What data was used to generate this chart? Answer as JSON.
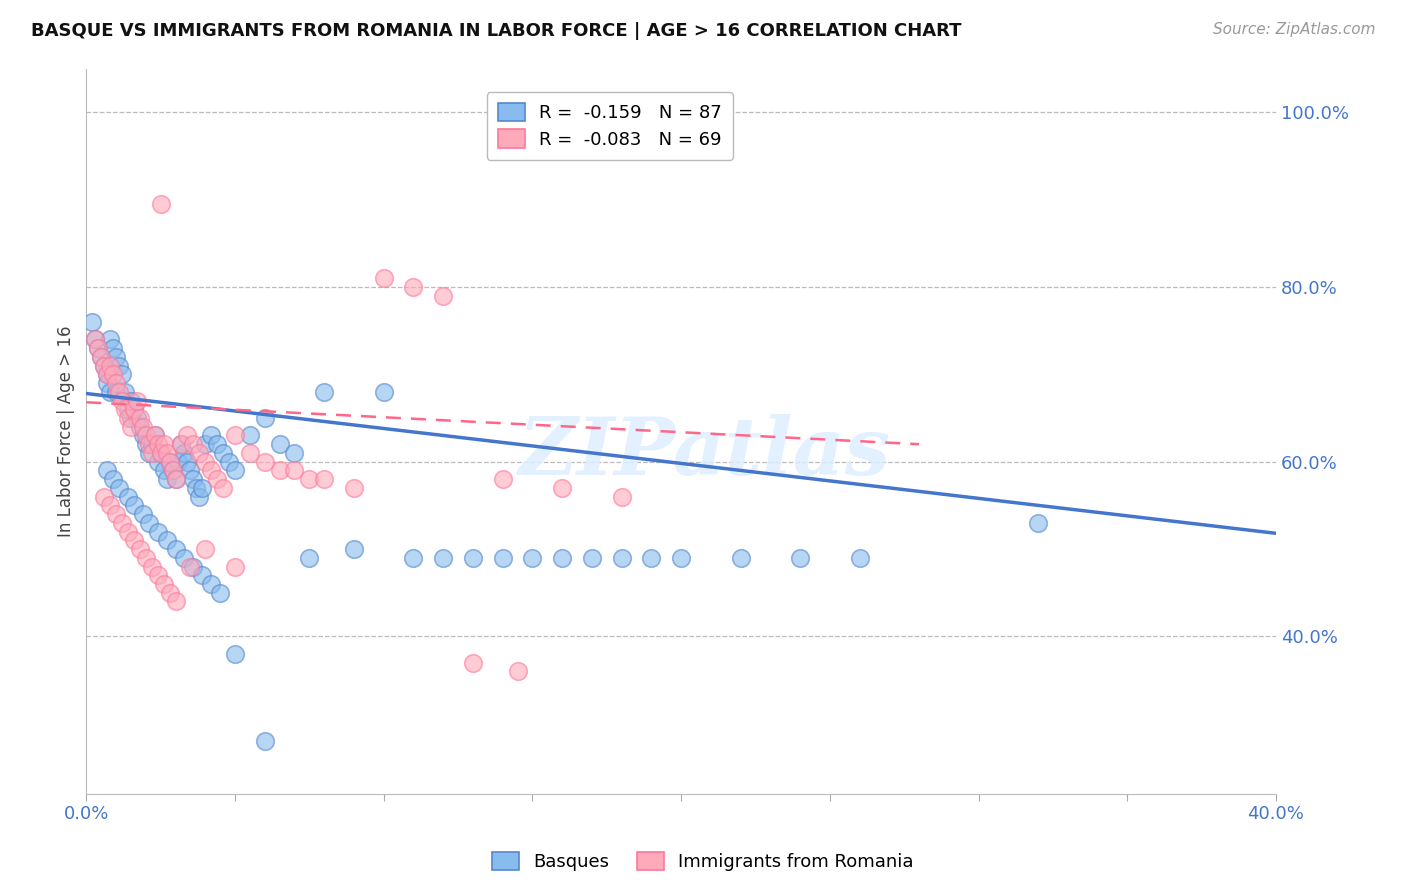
{
  "title": "BASQUE VS IMMIGRANTS FROM ROMANIA IN LABOR FORCE | AGE > 16 CORRELATION CHART",
  "source": "Source: ZipAtlas.com",
  "ylabel": "In Labor Force | Age > 16",
  "xlim": [
    0.0,
    0.4
  ],
  "ylim": [
    0.22,
    1.05
  ],
  "yticks_right": [
    0.4,
    0.6,
    0.8,
    1.0
  ],
  "ytick_labels_right": [
    "40.0%",
    "60.0%",
    "80.0%",
    "100.0%"
  ],
  "xtick_positions": [
    0.0,
    0.05,
    0.1,
    0.15,
    0.2,
    0.25,
    0.3,
    0.35,
    0.4
  ],
  "xtick_labels": [
    "0.0%",
    "",
    "",
    "",
    "",
    "",
    "",
    "",
    "40.0%"
  ],
  "legend_blue_r": "R =  -0.159",
  "legend_blue_n": "N = 87",
  "legend_pink_r": "R =  -0.083",
  "legend_pink_n": "N = 69",
  "blue_color": "#88BBEE",
  "pink_color": "#FFAABB",
  "blue_edge_color": "#5588CC",
  "pink_edge_color": "#FF7799",
  "blue_line_color": "#4477CC",
  "pink_line_color": "#FF6688",
  "watermark": "ZIPatlas",
  "watermark_color": "#DDEEFF",
  "background_color": "#FFFFFF",
  "grid_color": "#BBBBBB",
  "axis_color": "#4477CC",
  "title_color": "#111111",
  "source_color": "#999999",
  "ylabel_color": "#444444",
  "blue_line_x": [
    0.0,
    0.4
  ],
  "blue_line_y": [
    0.678,
    0.518
  ],
  "pink_line_x": [
    0.0,
    0.28
  ],
  "pink_line_y": [
    0.668,
    0.62
  ],
  "blue_scatter_x": [
    0.002,
    0.003,
    0.004,
    0.005,
    0.006,
    0.007,
    0.007,
    0.008,
    0.008,
    0.009,
    0.01,
    0.01,
    0.011,
    0.012,
    0.013,
    0.014,
    0.015,
    0.015,
    0.016,
    0.017,
    0.018,
    0.019,
    0.02,
    0.021,
    0.022,
    0.023,
    0.024,
    0.025,
    0.026,
    0.027,
    0.028,
    0.029,
    0.03,
    0.031,
    0.032,
    0.033,
    0.034,
    0.035,
    0.036,
    0.037,
    0.038,
    0.039,
    0.04,
    0.042,
    0.044,
    0.046,
    0.048,
    0.05,
    0.055,
    0.06,
    0.065,
    0.07,
    0.075,
    0.08,
    0.09,
    0.1,
    0.11,
    0.12,
    0.13,
    0.14,
    0.15,
    0.16,
    0.17,
    0.18,
    0.19,
    0.2,
    0.22,
    0.24,
    0.26,
    0.007,
    0.009,
    0.011,
    0.014,
    0.016,
    0.019,
    0.021,
    0.024,
    0.027,
    0.03,
    0.033,
    0.036,
    0.039,
    0.042,
    0.045,
    0.05,
    0.06,
    0.32
  ],
  "blue_scatter_y": [
    0.76,
    0.74,
    0.73,
    0.72,
    0.71,
    0.7,
    0.69,
    0.68,
    0.74,
    0.73,
    0.68,
    0.72,
    0.71,
    0.7,
    0.68,
    0.66,
    0.67,
    0.65,
    0.66,
    0.65,
    0.64,
    0.63,
    0.62,
    0.61,
    0.62,
    0.63,
    0.6,
    0.61,
    0.59,
    0.58,
    0.6,
    0.59,
    0.58,
    0.6,
    0.62,
    0.61,
    0.6,
    0.59,
    0.58,
    0.57,
    0.56,
    0.57,
    0.62,
    0.63,
    0.62,
    0.61,
    0.6,
    0.59,
    0.63,
    0.65,
    0.62,
    0.61,
    0.49,
    0.68,
    0.5,
    0.68,
    0.49,
    0.49,
    0.49,
    0.49,
    0.49,
    0.49,
    0.49,
    0.49,
    0.49,
    0.49,
    0.49,
    0.49,
    0.49,
    0.59,
    0.58,
    0.57,
    0.56,
    0.55,
    0.54,
    0.53,
    0.52,
    0.51,
    0.5,
    0.49,
    0.48,
    0.47,
    0.46,
    0.45,
    0.38,
    0.28,
    0.53
  ],
  "pink_scatter_x": [
    0.003,
    0.004,
    0.005,
    0.006,
    0.007,
    0.008,
    0.009,
    0.01,
    0.011,
    0.012,
    0.013,
    0.014,
    0.015,
    0.016,
    0.017,
    0.018,
    0.019,
    0.02,
    0.021,
    0.022,
    0.023,
    0.024,
    0.025,
    0.026,
    0.027,
    0.028,
    0.029,
    0.03,
    0.032,
    0.034,
    0.036,
    0.038,
    0.04,
    0.042,
    0.044,
    0.046,
    0.05,
    0.055,
    0.06,
    0.065,
    0.07,
    0.075,
    0.08,
    0.09,
    0.1,
    0.11,
    0.12,
    0.14,
    0.16,
    0.18,
    0.006,
    0.008,
    0.01,
    0.012,
    0.014,
    0.016,
    0.018,
    0.02,
    0.022,
    0.024,
    0.026,
    0.028,
    0.03,
    0.035,
    0.04,
    0.05,
    0.13,
    0.145,
    0.025
  ],
  "pink_scatter_y": [
    0.74,
    0.73,
    0.72,
    0.71,
    0.7,
    0.71,
    0.7,
    0.69,
    0.68,
    0.67,
    0.66,
    0.65,
    0.64,
    0.66,
    0.67,
    0.65,
    0.64,
    0.63,
    0.62,
    0.61,
    0.63,
    0.62,
    0.61,
    0.62,
    0.61,
    0.6,
    0.59,
    0.58,
    0.62,
    0.63,
    0.62,
    0.61,
    0.6,
    0.59,
    0.58,
    0.57,
    0.63,
    0.61,
    0.6,
    0.59,
    0.59,
    0.58,
    0.58,
    0.57,
    0.81,
    0.8,
    0.79,
    0.58,
    0.57,
    0.56,
    0.56,
    0.55,
    0.54,
    0.53,
    0.52,
    0.51,
    0.5,
    0.49,
    0.48,
    0.47,
    0.46,
    0.45,
    0.44,
    0.48,
    0.5,
    0.48,
    0.37,
    0.36,
    0.895
  ]
}
